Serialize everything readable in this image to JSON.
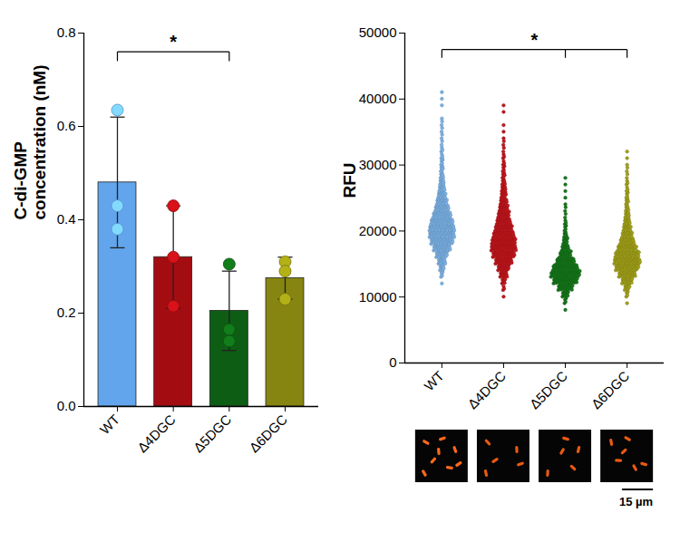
{
  "chart_data": [
    {
      "type": "bar",
      "panel": "A",
      "y_label": "C-di-GMP concentration (nM)",
      "categories": [
        "WT",
        "Δ4DGC",
        "Δ5DGC",
        "Δ6DGC"
      ],
      "values": [
        0.48,
        0.32,
        0.205,
        0.275
      ],
      "errors": [
        0.14,
        0.11,
        0.085,
        0.045
      ],
      "points": [
        [
          0.635,
          0.43,
          0.38
        ],
        [
          0.43,
          0.32,
          0.215
        ],
        [
          0.305,
          0.165,
          0.14
        ],
        [
          0.31,
          0.29,
          0.23
        ]
      ],
      "colors": [
        "#62a5ec",
        "#a30d12",
        "#0d5e14",
        "#878511"
      ],
      "ylim": [
        0,
        0.8
      ],
      "yticks": [
        {
          "value": 0,
          "label": "0.0"
        },
        0.2,
        0.4,
        0.6,
        0.8
      ],
      "significance": [
        {
          "from": "WT",
          "to": [
            "Δ5DGC"
          ],
          "label": "*"
        }
      ]
    },
    {
      "type": "beeswarm",
      "panel": "B",
      "y_label": "RFU",
      "categories": [
        "WT",
        "Δ4DGC",
        "Δ5DGC",
        "Δ6DGC"
      ],
      "colors": [
        "#7db4e8",
        "#c2171d",
        "#17781b",
        "#a3a21a"
      ],
      "bins": [
        8000,
        9000,
        10000,
        11000,
        12000,
        13000,
        14000,
        15000,
        16000,
        17000,
        18000,
        19000,
        20000,
        21000,
        22000,
        23000,
        24000,
        25000,
        26000,
        27000,
        28000,
        29000,
        30000,
        31000,
        32000,
        33000,
        34000,
        35000,
        36000,
        37000,
        38000,
        39000,
        40000,
        41000,
        42000
      ],
      "counts": [
        [
          0,
          0,
          0,
          0,
          1,
          4,
          8,
          14,
          22,
          32,
          42,
          48,
          48,
          42,
          34,
          26,
          20,
          15,
          11,
          8,
          6,
          5,
          4,
          3,
          3,
          2,
          2,
          2,
          2,
          1,
          0,
          1,
          1,
          1
        ],
        [
          0,
          0,
          1,
          3,
          7,
          14,
          22,
          32,
          42,
          48,
          46,
          40,
          33,
          27,
          22,
          17,
          13,
          10,
          8,
          6,
          5,
          4,
          3,
          3,
          2,
          2,
          1,
          1,
          1,
          0,
          1,
          1,
          0,
          0
        ],
        [
          1,
          4,
          12,
          28,
          46,
          56,
          48,
          34,
          22,
          14,
          9,
          6,
          4,
          3,
          2,
          2,
          1,
          1,
          1,
          1,
          1,
          0,
          0,
          0,
          0,
          0,
          0,
          0,
          0,
          0,
          0,
          0,
          0,
          0
        ],
        [
          0,
          1,
          4,
          10,
          20,
          32,
          44,
          50,
          46,
          36,
          27,
          20,
          15,
          11,
          8,
          6,
          5,
          4,
          3,
          3,
          2,
          2,
          1,
          1,
          1,
          0,
          0,
          0,
          0,
          0,
          0,
          0,
          0,
          0
        ]
      ],
      "ylim": [
        0,
        50000
      ],
      "yticks": [
        0,
        10000,
        20000,
        30000,
        40000,
        50000
      ],
      "significance": [
        {
          "from": "WT",
          "to": [
            "Δ5DGC",
            "Δ6DGC"
          ],
          "label": "*"
        }
      ],
      "micrographs": {
        "scale_bar_label": "15 µm"
      }
    }
  ]
}
